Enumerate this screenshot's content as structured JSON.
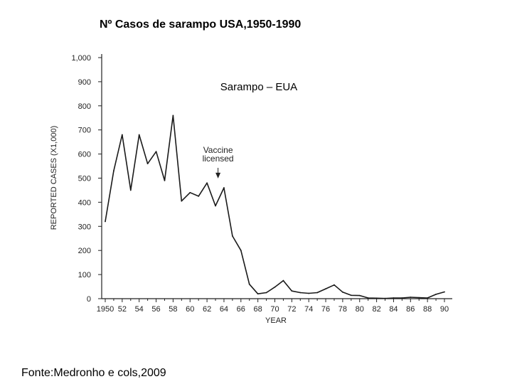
{
  "slide": {
    "title": "Nº Casos de sarampo USA,1950-1990",
    "source": "Fonte:Medronho e cols,2009"
  },
  "chart_data": {
    "type": "line",
    "title": "Sarampo – EUA",
    "xlabel": "YEAR",
    "ylabel": "REPORTED CASES (X1,000)",
    "xlim": [
      1950,
      1990
    ],
    "ylim": [
      0,
      1000
    ],
    "y_ticks": [
      {
        "value": 0,
        "label": "0"
      },
      {
        "value": 100,
        "label": "100"
      },
      {
        "value": 200,
        "label": "200"
      },
      {
        "value": 300,
        "label": "300"
      },
      {
        "value": 400,
        "label": "400"
      },
      {
        "value": 500,
        "label": "500"
      },
      {
        "value": 600,
        "label": "600"
      },
      {
        "value": 700,
        "label": "700"
      },
      {
        "value": 800,
        "label": "800"
      },
      {
        "value": 900,
        "label": "900"
      },
      {
        "value": 1000,
        "label": "1,000"
      }
    ],
    "x_ticks": [
      {
        "value": 1950,
        "label": "1950"
      },
      {
        "value": 1952,
        "label": "52"
      },
      {
        "value": 1954,
        "label": "54"
      },
      {
        "value": 1956,
        "label": "56"
      },
      {
        "value": 1958,
        "label": "58"
      },
      {
        "value": 1960,
        "label": "60"
      },
      {
        "value": 1962,
        "label": "62"
      },
      {
        "value": 1964,
        "label": "64"
      },
      {
        "value": 1966,
        "label": "66"
      },
      {
        "value": 1968,
        "label": "68"
      },
      {
        "value": 1970,
        "label": "70"
      },
      {
        "value": 1972,
        "label": "72"
      },
      {
        "value": 1974,
        "label": "74"
      },
      {
        "value": 1976,
        "label": "76"
      },
      {
        "value": 1978,
        "label": "78"
      },
      {
        "value": 1980,
        "label": "80"
      },
      {
        "value": 1982,
        "label": "82"
      },
      {
        "value": 1984,
        "label": "84"
      },
      {
        "value": 1986,
        "label": "86"
      },
      {
        "value": 1988,
        "label": "88"
      },
      {
        "value": 1990,
        "label": "90"
      }
    ],
    "series": [
      {
        "x": [
          1950,
          1951,
          1952,
          1953,
          1954,
          1955,
          1956,
          1957,
          1958,
          1959,
          1960,
          1961,
          1962,
          1963,
          1964,
          1965,
          1966,
          1967,
          1968,
          1969,
          1970,
          1971,
          1972,
          1973,
          1974,
          1975,
          1976,
          1977,
          1978,
          1979,
          1980,
          1981,
          1982,
          1983,
          1984,
          1985,
          1986,
          1987,
          1988,
          1989,
          1990
        ],
        "y": [
          320,
          530,
          680,
          450,
          680,
          560,
          610,
          490,
          760,
          405,
          440,
          425,
          480,
          385,
          460,
          260,
          200,
          60,
          20,
          25,
          48,
          75,
          32,
          25,
          22,
          25,
          41,
          57,
          27,
          14,
          13,
          3,
          2,
          1,
          3,
          3,
          6,
          4,
          3,
          18,
          28
        ]
      }
    ],
    "annotations": [
      {
        "text_lines": [
          "Vaccine",
          "licensed"
        ],
        "x": 1963.3,
        "y": 490
      }
    ],
    "grid": false,
    "color": "#1a1a1a"
  }
}
